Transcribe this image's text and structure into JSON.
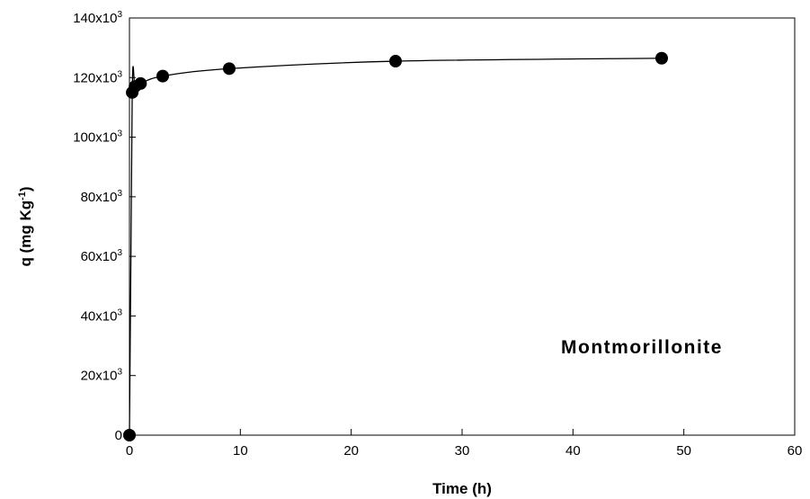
{
  "chart_data": {
    "type": "scatter",
    "title": "",
    "xlabel": "Time (h)",
    "ylabel": "q (mg Kg-1)",
    "ylabel_parts": {
      "main": "q (mg Kg",
      "sup": "-1",
      "close": ")"
    },
    "annotation": "Montmorillonite",
    "xlim": [
      0,
      60
    ],
    "ylim": [
      0,
      140000
    ],
    "x_ticks": [
      0,
      10,
      20,
      30,
      40,
      50,
      60
    ],
    "x_tick_labels": [
      "0",
      "10",
      "20",
      "30",
      "40",
      "50",
      "60"
    ],
    "y_ticks": [
      0,
      20000,
      40000,
      60000,
      80000,
      100000,
      120000,
      140000
    ],
    "y_tick_labels": [
      {
        "base": "0",
        "exp": ""
      },
      {
        "base": "20x10",
        "exp": "3"
      },
      {
        "base": "40x10",
        "exp": "3"
      },
      {
        "base": "60x10",
        "exp": "3"
      },
      {
        "base": "80x10",
        "exp": "3"
      },
      {
        "base": "100x10",
        "exp": "3"
      },
      {
        "base": "120x10",
        "exp": "3"
      },
      {
        "base": "140x10",
        "exp": "3"
      }
    ],
    "grid": false,
    "legend": "none",
    "series": [
      {
        "marker": "filled-circle",
        "color": "#000000",
        "line": "smooth-fit",
        "x": [
          0,
          0.25,
          0.5,
          1,
          3,
          9,
          24,
          48
        ],
        "y": [
          0,
          115000,
          117000,
          118000,
          120500,
          123000,
          125500,
          126500
        ]
      }
    ]
  }
}
